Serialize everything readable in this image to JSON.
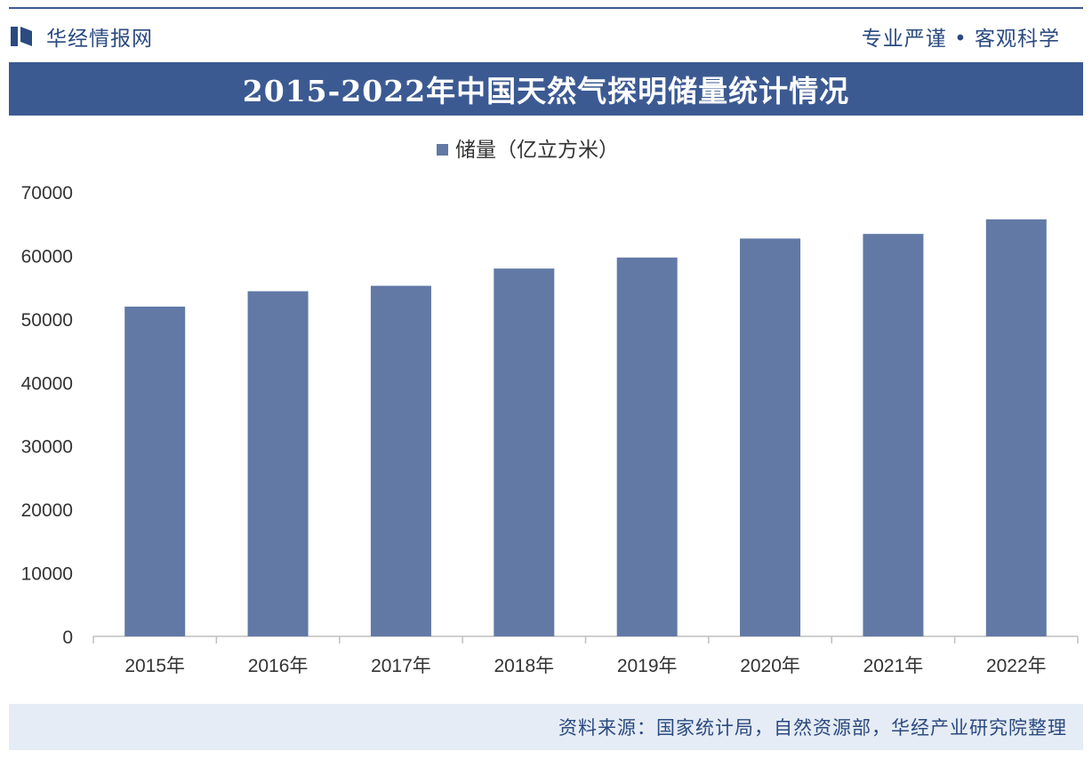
{
  "header": {
    "brand_name": "华经情报网",
    "slogan": "专业严谨 • 客观科学"
  },
  "title": "2015-2022年中国天然气探明储量统计情况",
  "footer": {
    "source": "资料来源：国家统计局，自然资源部，华经产业研究院整理"
  },
  "colors": {
    "bar": "#6279a6",
    "title_bg": "#3c5a92",
    "brand": "#2a4a80"
  },
  "chart_data": {
    "type": "bar",
    "categories": [
      "2015年",
      "2016年",
      "2017年",
      "2018年",
      "2019年",
      "2020年",
      "2021年",
      "2022年"
    ],
    "series": [
      {
        "name": "储量（亿立方米）",
        "values": [
          51939,
          54365,
          55221,
          57936,
          59675,
          62666,
          63392,
          65690
        ]
      }
    ],
    "ylim": [
      0,
      70000
    ],
    "yticks": [
      0,
      10000,
      20000,
      30000,
      40000,
      50000,
      60000,
      70000
    ],
    "legend_position": "top-center",
    "grid": false
  }
}
